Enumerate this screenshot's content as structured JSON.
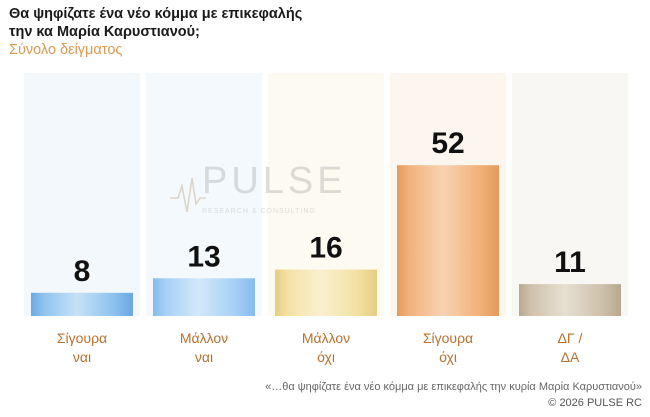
{
  "header": {
    "title": "Θα ψηφίζατε ένα νέο κόμμα με επικεφαλής\nτην κα Μαρία Καρυστιανού;",
    "subtitle": "Σύνολο δείγματος"
  },
  "watermark": {
    "brand": "PULSE",
    "tagline": "RESEARCH & CONSULTING"
  },
  "chart_data": {
    "type": "bar",
    "categories": [
      "Σίγουρα ναι",
      "Μάλλον ναι",
      "Μάλλον όχι",
      "Σίγουρα όχι",
      "ΔΓ / ΔΑ"
    ],
    "category_lines": [
      [
        "Σίγουρα",
        "ναι"
      ],
      [
        "Μάλλον",
        "ναι"
      ],
      [
        "Μάλλον",
        "όχι"
      ],
      [
        "Σίγουρα",
        "όχι"
      ],
      [
        "ΔΓ /",
        "ΔΑ"
      ]
    ],
    "values": [
      8,
      13,
      16,
      52,
      11
    ],
    "value_labels": [
      "8",
      "13",
      "16",
      "52",
      "11"
    ],
    "ylim": [
      0,
      100
    ],
    "grid": false,
    "colors": {
      "bars": [
        "#8ec3ee",
        "#a6d0f5",
        "#f3e1a4",
        "#f2b27c",
        "#cfc2ac"
      ],
      "bar_highlights": [
        "#c6e1f8",
        "#d3e8fb",
        "#faf0cf",
        "#f8d3b2",
        "#e7dfd2"
      ],
      "bar_shades": [
        "#6aa8e0",
        "#86bbec",
        "#e6cd83",
        "#e49a5d",
        "#b7a88f"
      ],
      "columns": [
        "#f3f8fd",
        "#f4f9fd",
        "#fdfaf2",
        "#fdf6ef",
        "#f9f7f4"
      ],
      "value_text": "#111111",
      "category_text": "#b8702e"
    }
  },
  "footer": {
    "footnote": "«…θα ψηφίζατε ένα νέο κόμμα με επικεφαλής την κυρία Μαρία Καρυστιανού»",
    "copyright": "©  2026  PULSE RC"
  }
}
